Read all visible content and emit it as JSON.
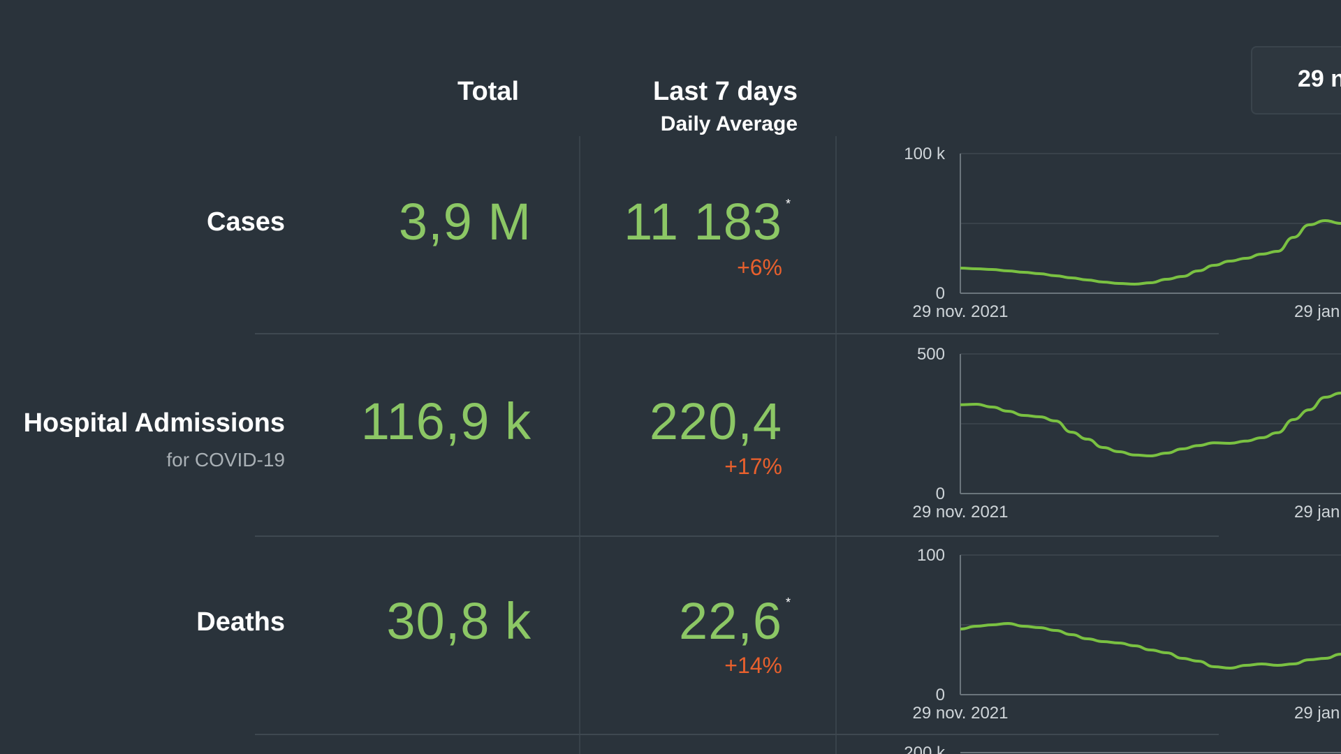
{
  "header": {
    "total": "Total",
    "last7": "Last 7 days",
    "daily_avg": "Daily Average"
  },
  "tooltip": {
    "date_partial": "29 n"
  },
  "rows": [
    {
      "label": "Cases",
      "sublabel": "",
      "total": "3,9 M",
      "avg": "11 183",
      "star": "*",
      "change": "+6%",
      "chart": {
        "y_max_label": "100 k",
        "y_min_label": "0",
        "x_start": "29 nov. 2021",
        "x_end_partial": "29 jan",
        "ylim": [
          0,
          100000
        ],
        "values": [
          18000,
          17500,
          17000,
          16000,
          15000,
          14000,
          12500,
          11000,
          9500,
          8000,
          7000,
          6500,
          7500,
          10000,
          12000,
          16000,
          20000,
          23000,
          25000,
          28000,
          30000,
          40000,
          49000,
          52000,
          50000
        ]
      }
    },
    {
      "label": "Hospital Admissions",
      "sublabel": "for COVID-19",
      "total": "116,9 k",
      "avg": "220,4",
      "star": "",
      "change": "+17%",
      "chart": {
        "y_max_label": "500",
        "y_min_label": "0",
        "x_start": "29 nov. 2021",
        "x_end_partial": "29 jan",
        "ylim": [
          0,
          500
        ],
        "values": [
          318,
          320,
          310,
          295,
          280,
          275,
          260,
          220,
          195,
          165,
          150,
          138,
          135,
          145,
          160,
          172,
          182,
          180,
          188,
          200,
          218,
          265,
          300,
          345,
          360
        ]
      }
    },
    {
      "label": "Deaths",
      "sublabel": "",
      "total": "30,8 k",
      "avg": "22,6",
      "star": "*",
      "change": "+14%",
      "chart": {
        "y_max_label": "100",
        "y_min_label": "0",
        "x_start": "29 nov. 2021",
        "x_end_partial": "29 jan",
        "ylim": [
          0,
          100
        ],
        "values": [
          47,
          49,
          50,
          51,
          49,
          48,
          46,
          43,
          40,
          38,
          37,
          35,
          32,
          30,
          26,
          24,
          20,
          19,
          21,
          22,
          21,
          22,
          25,
          26,
          29
        ]
      }
    }
  ],
  "partial_next_chart_label": "200 k",
  "colors": {
    "background": "#2a333b",
    "value_green": "#8cc765",
    "change_orange": "#e8602d",
    "line_green": "#7ac142"
  }
}
